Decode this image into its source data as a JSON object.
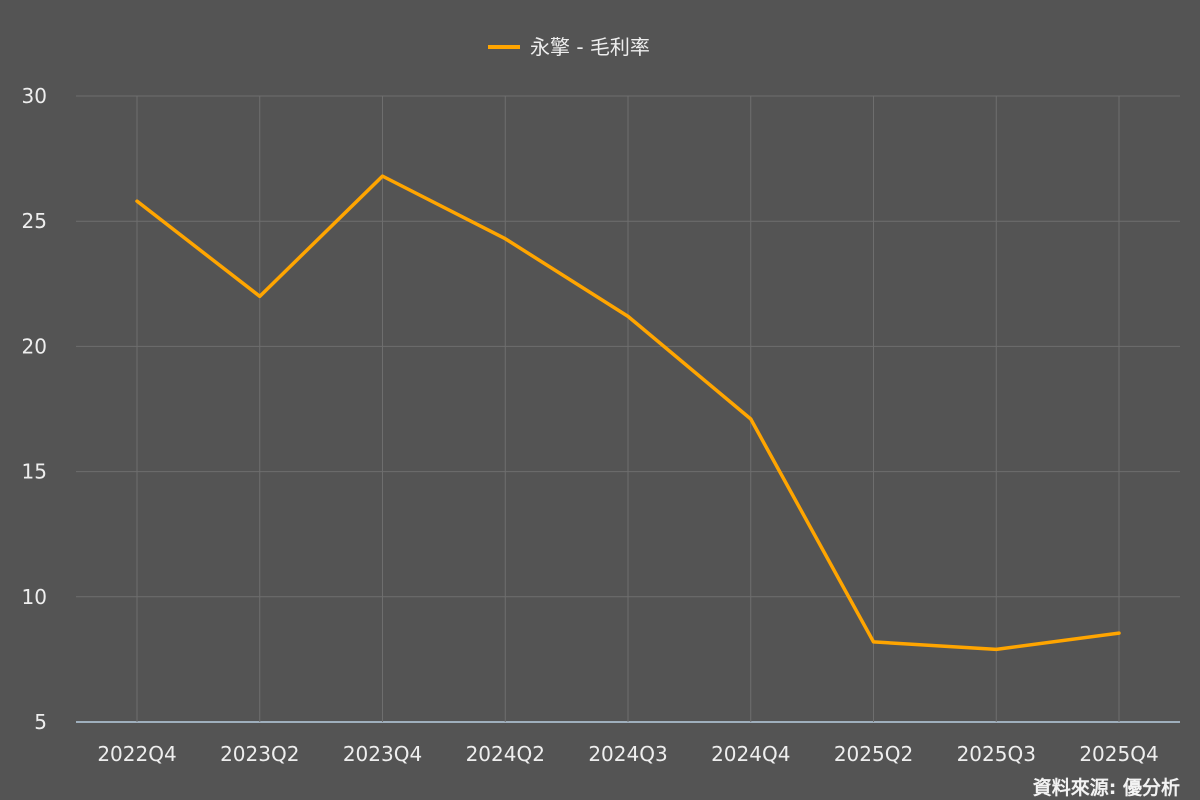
{
  "chart_data": {
    "type": "line",
    "categories": [
      "2022Q4",
      "2023Q2",
      "2023Q4",
      "2024Q2",
      "2024Q3",
      "2024Q4",
      "2025Q2",
      "2025Q3",
      "2025Q4"
    ],
    "series": [
      {
        "name": "永擎 - 毛利率",
        "values": [
          25.8,
          22.0,
          26.8,
          24.3,
          21.2,
          17.1,
          8.2,
          7.9,
          8.55
        ],
        "color": "#ffa500"
      }
    ],
    "yticks": [
      5,
      10,
      15,
      20,
      25,
      30
    ],
    "ylim": [
      5,
      30
    ],
    "grid": true,
    "legend_position": "top-center",
    "source": "資料來源: 優分析",
    "colors": {
      "background": "#545454",
      "grid": "#6e6e6e",
      "baseline": "#b8cde0",
      "text": "#eeeeee"
    }
  }
}
